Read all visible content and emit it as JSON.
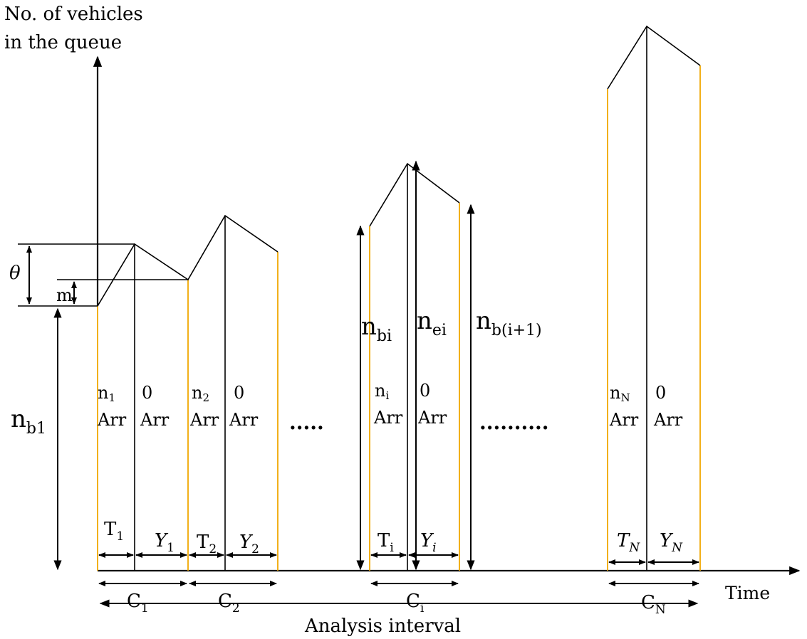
{
  "y_axis_label": {
    "line1": "No. of vehicles",
    "line2": "in the queue"
  },
  "x_axis_label": "Time",
  "analysis_label": "Analysis interval",
  "theta_label": "θ",
  "m_label": "m",
  "n_b1": {
    "base": "n",
    "sub": "b1"
  },
  "n_bi": {
    "base": "n",
    "sub": "bi"
  },
  "n_ei": {
    "base": "n",
    "sub": "ei"
  },
  "n_bip1": {
    "base": "n",
    "sub": "b(i+1)"
  },
  "cycles": [
    {
      "n_base": "n",
      "n_sub": "1",
      "arr": "Arr",
      "zero": "0",
      "zero_arr": "Arr",
      "T_base": "T",
      "T_sub": "1",
      "Y_base": "Y",
      "Y_sub": "1",
      "C_base": "C",
      "C_sub": "1"
    },
    {
      "n_base": "n",
      "n_sub": "2",
      "arr": "Arr",
      "zero": "0",
      "zero_arr": "Arr",
      "T_base": "T",
      "T_sub": "2",
      "Y_base": "Y",
      "Y_sub": "2",
      "C_base": "C",
      "C_sub": "2"
    },
    {
      "n_base": "n",
      "n_sub": "i",
      "arr": "Arr",
      "zero": "0",
      "zero_arr": "Arr",
      "T_base": "T",
      "T_sub": "i",
      "Y_base": "Y",
      "Y_sub": "i",
      "C_base": "C",
      "C_sub": "i"
    },
    {
      "n_base": "n",
      "n_sub": "N",
      "arr": "Arr",
      "zero": "0",
      "zero_arr": "Arr",
      "T_base": "T",
      "T_sub": "N",
      "Y_base": "Y",
      "Y_sub": "N",
      "C_base": "C",
      "C_sub": "N"
    }
  ],
  "ellipsis_short": ".....",
  "ellipsis_long": "..........",
  "colors": {
    "cycle_boundary": "#f0a800",
    "line": "#000000",
    "background": "#ffffff"
  }
}
